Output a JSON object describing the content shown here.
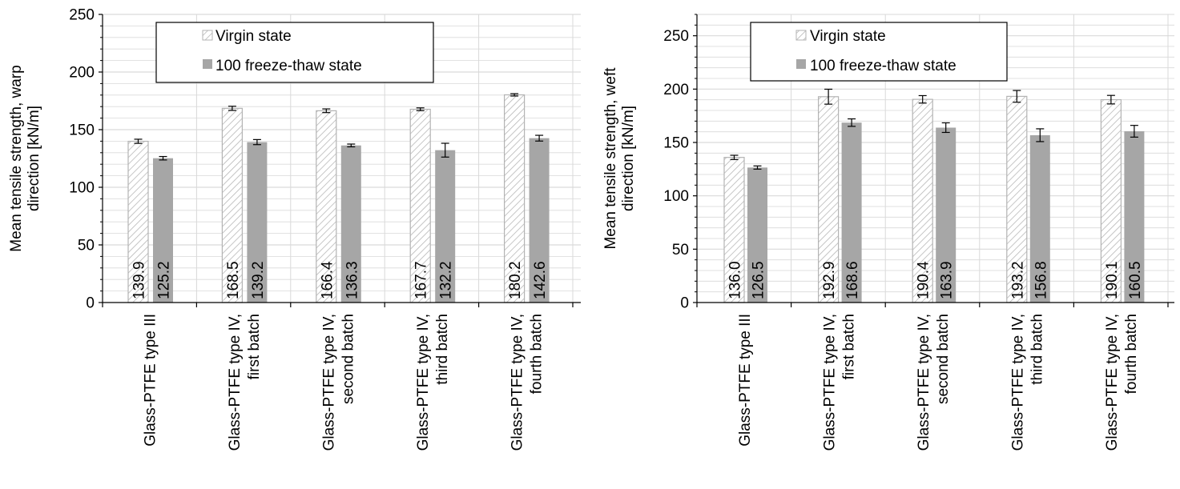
{
  "chart_data": [
    {
      "type": "bar",
      "ylabel_line1": "Mean tensile strength, warp",
      "ylabel_line2": "direction  [kN/m]",
      "ylim": [
        0,
        250
      ],
      "yticks": [
        0,
        50,
        100,
        150,
        200,
        250
      ],
      "categories": [
        [
          "Glass-PTFE type III"
        ],
        [
          "Glass-PTFE type IV,",
          "first batch"
        ],
        [
          "Glass-PTFE type IV,",
          "second batch"
        ],
        [
          "Glass-PTFE type IV,",
          "third batch"
        ],
        [
          "Glass-PTFE type IV,",
          "fourth batch"
        ]
      ],
      "series": [
        {
          "name": "Virgin state",
          "style": "hatched",
          "values": [
            139.9,
            168.5,
            166.4,
            167.7,
            180.2
          ],
          "labels": [
            "139.9",
            "168.5",
            "166.4",
            "167.7",
            "180.2"
          ],
          "errors": [
            1.8,
            1.8,
            1.6,
            1.2,
            1.0
          ]
        },
        {
          "name": "100 freeze-thaw state",
          "style": "solid",
          "values": [
            125.2,
            139.2,
            136.3,
            132.2,
            142.6
          ],
          "labels": [
            "125.2",
            "139.2",
            "136.3",
            "132.2",
            "142.6"
          ],
          "errors": [
            1.5,
            2.2,
            1.2,
            6.0,
            2.5
          ]
        }
      ],
      "legend": [
        "Virgin state",
        "100 freeze-thaw state"
      ],
      "grid": true,
      "legend_position": "top-center"
    },
    {
      "type": "bar",
      "ylabel_line1": "Mean tensile strength, weft",
      "ylabel_line2": "direction  [kN/m]",
      "ylim": [
        0,
        270
      ],
      "yticks": [
        0,
        50,
        100,
        150,
        200,
        250
      ],
      "categories": [
        [
          "Glass-PTFE type III"
        ],
        [
          "Glass-PTFE type IV,",
          "first batch"
        ],
        [
          "Glass-PTFE type IV,",
          "second batch"
        ],
        [
          "Glass-PTFE type IV,",
          "third batch"
        ],
        [
          "Glass-PTFE type IV,",
          "fourth batch"
        ]
      ],
      "series": [
        {
          "name": "Virgin state",
          "style": "hatched",
          "values": [
            136.0,
            192.9,
            190.4,
            193.2,
            190.1
          ],
          "labels": [
            "136.0",
            "192.9",
            "190.4",
            "193.2",
            "190.1"
          ],
          "errors": [
            2.0,
            7.0,
            3.5,
            5.5,
            4.0
          ]
        },
        {
          "name": "100 freeze-thaw state",
          "style": "solid",
          "values": [
            126.5,
            168.6,
            163.9,
            156.8,
            160.5
          ],
          "labels": [
            "126.5",
            "168.6",
            "163.9",
            "156.8",
            "160.5"
          ],
          "errors": [
            1.5,
            3.5,
            4.5,
            6.0,
            5.5
          ]
        }
      ],
      "legend": [
        "Virgin state",
        "100 freeze-thaw state"
      ],
      "grid": true,
      "legend_position": "top-center"
    }
  ],
  "colors": {
    "hatch": "#b3b3b3",
    "solid": "#a6a6a6",
    "grid": "#d9d9d9",
    "axis": "#000000"
  }
}
